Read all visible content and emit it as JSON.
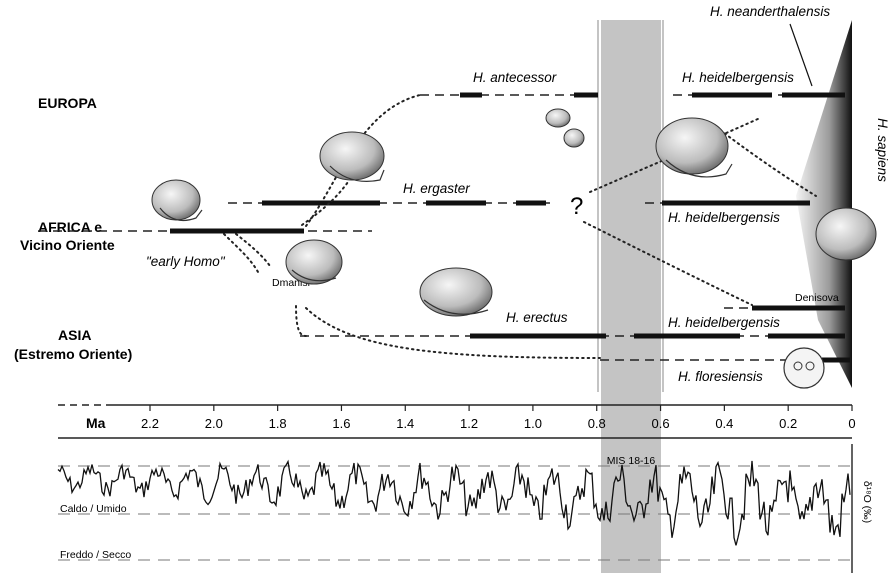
{
  "regions": {
    "europe": "EUROPA",
    "africa_line1": "AFRICA e",
    "africa_line2": "Vicino Oriente",
    "asia_line1": "ASIA",
    "asia_line2": "(Estremo Oriente)"
  },
  "taxa": {
    "neanderthalensis": "H. neanderthalensis",
    "antecessor": "H. antecessor",
    "heidelbergensis_europe": "H. heidelbergensis",
    "ergaster": "H. ergaster",
    "heidelbergensis_africa": "H. heidelbergensis",
    "erectus": "H. erectus",
    "heidelbergensis_asia": "H. heidelbergensis",
    "floresiensis": "H. floresiensis",
    "sapiens": "H. sapiens",
    "early_homo": "\"early Homo\"",
    "dmanisi": "Dmanisi",
    "denisova": "Denisova",
    "unknown": "?"
  },
  "band_label": "MIS 18-16",
  "time_axis": {
    "unit": "Ma",
    "ticks": [
      "2.2",
      "2.0",
      "1.8",
      "1.6",
      "1.4",
      "1.2",
      "1.0",
      "0.8",
      "0.6",
      "0.4",
      "0.2",
      "0"
    ]
  },
  "climate": {
    "warm_label": "Caldo / Umido",
    "cold_label": "Freddo / Secco",
    "proxy_label": "δ¹⁸O (‰)"
  },
  "colors": {
    "band": "#c4c4c4",
    "bars": "#111111",
    "wedge_dark": "#111111",
    "wedge_light": "#f2f2f2"
  }
}
